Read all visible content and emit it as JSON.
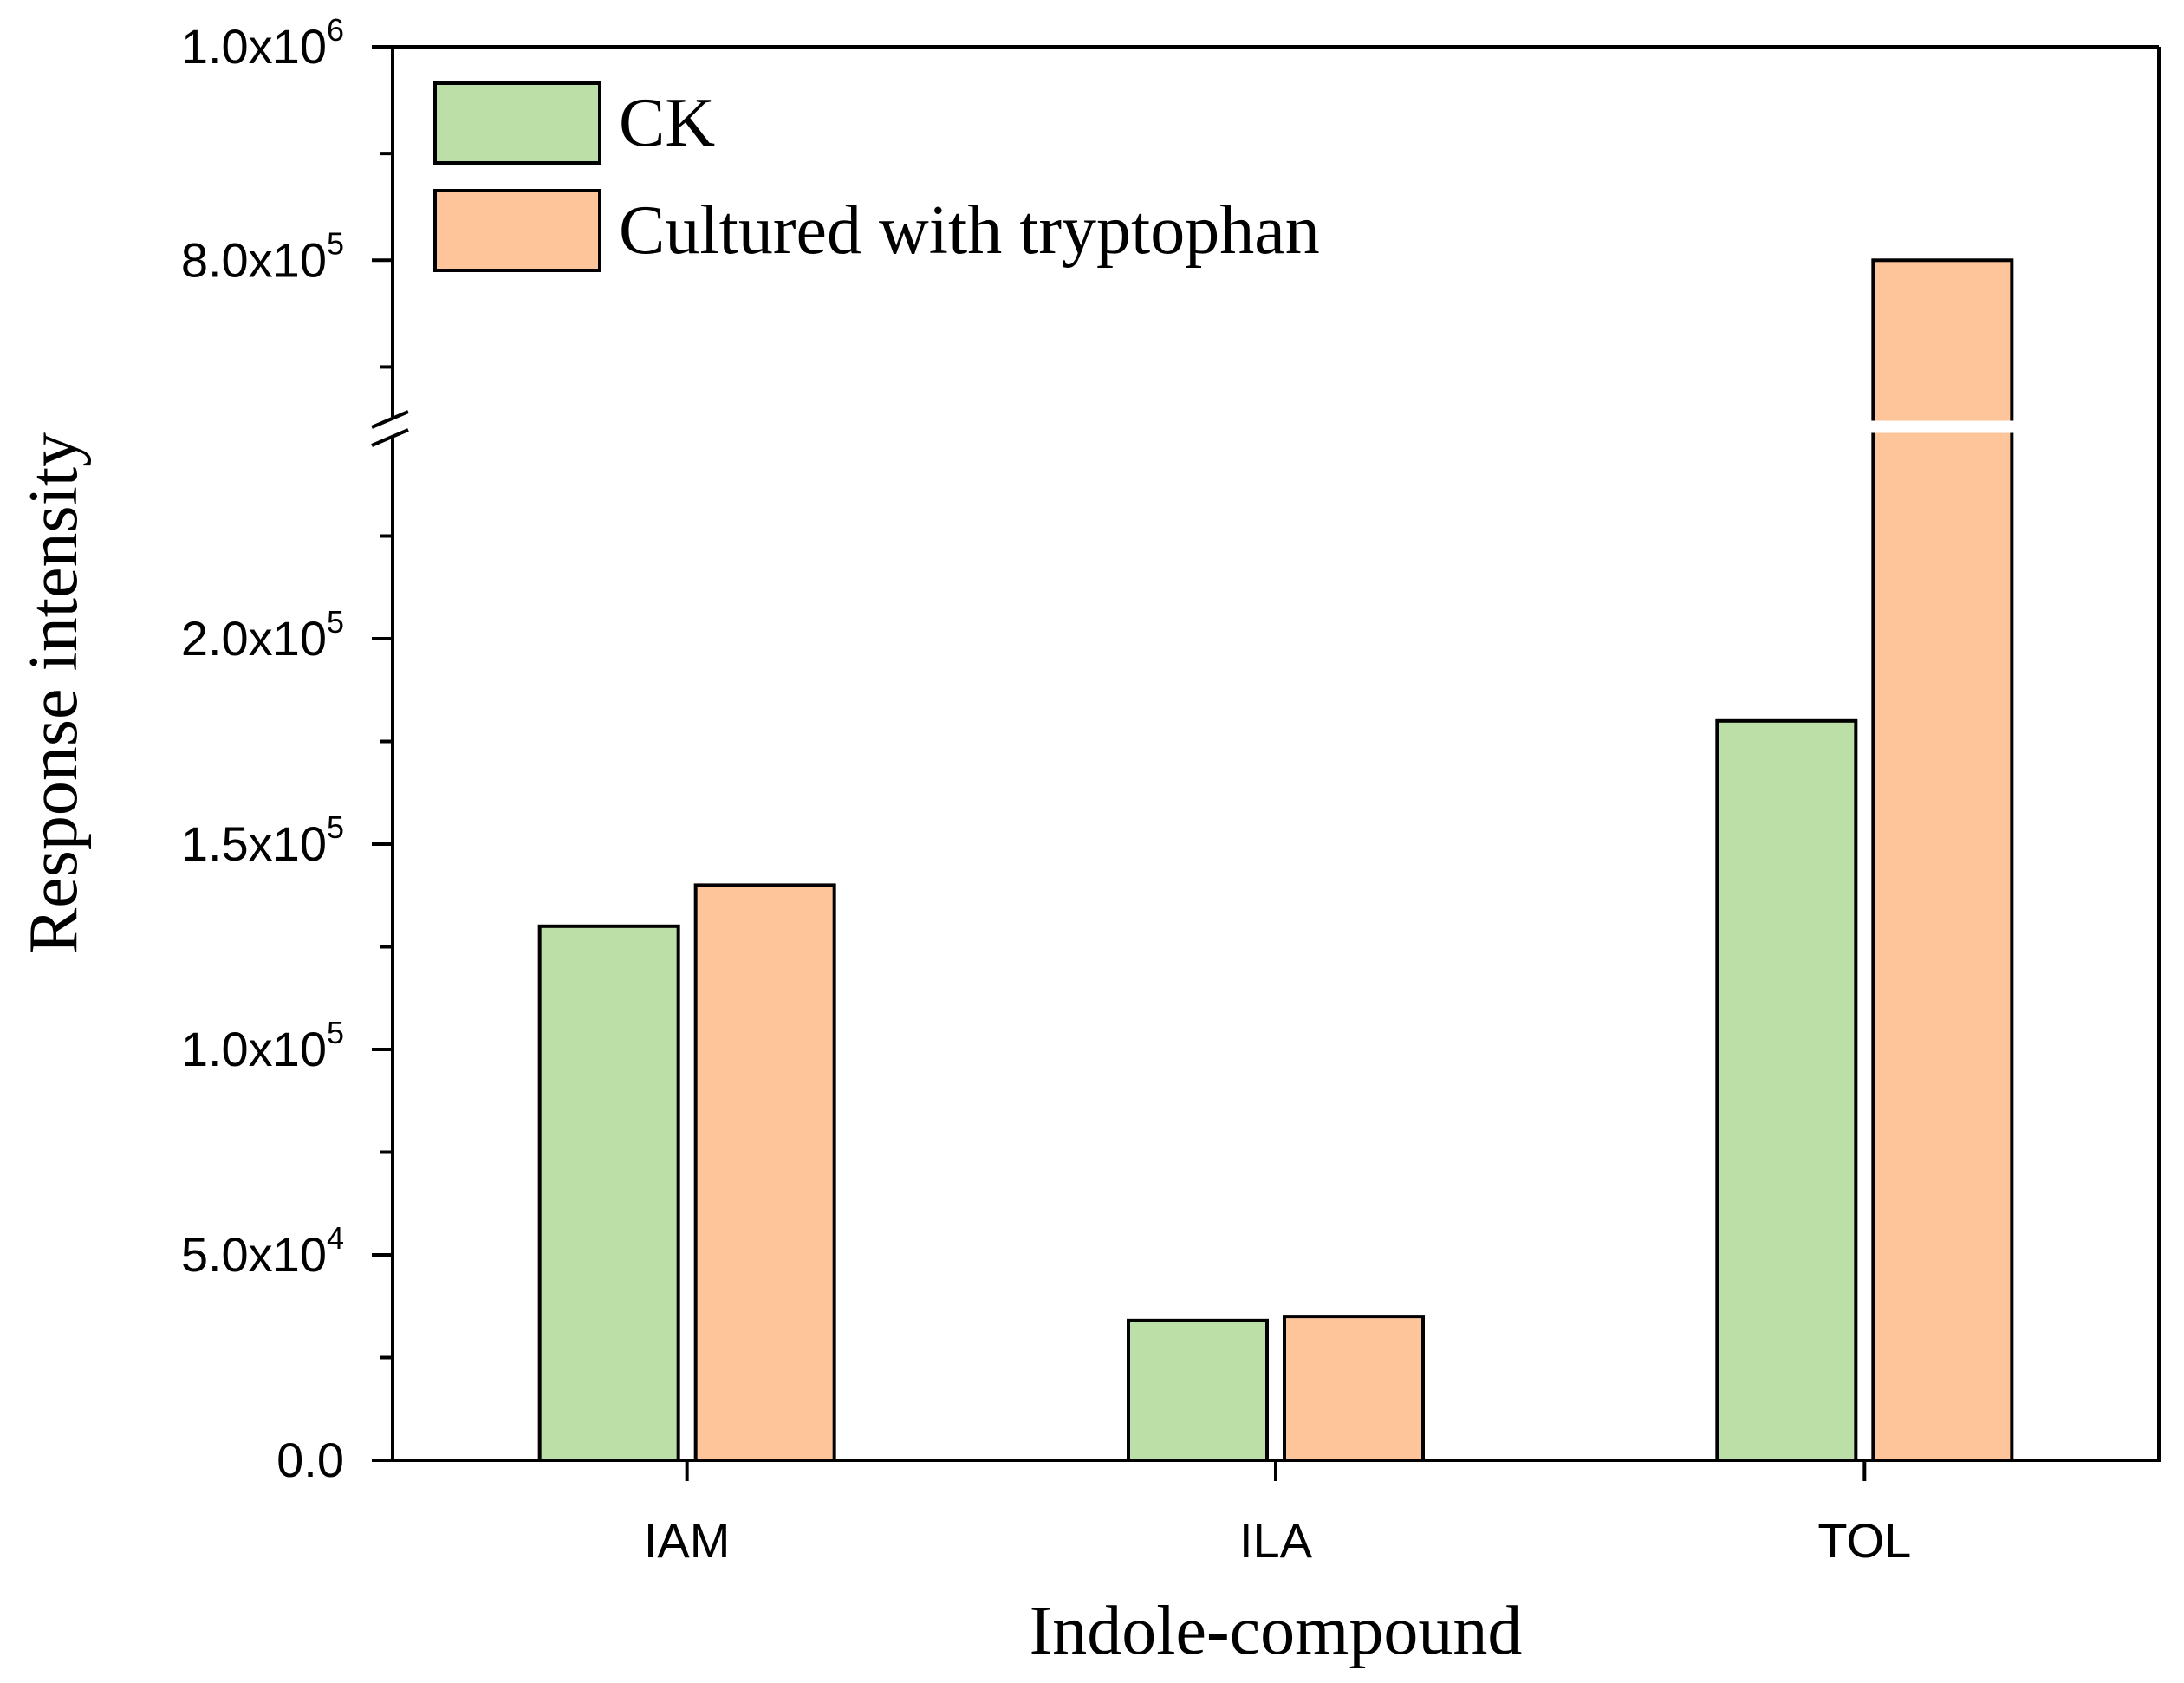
{
  "chart_data": {
    "type": "bar",
    "categories": [
      "IAM",
      "ILA",
      "TOL"
    ],
    "series": [
      {
        "name": "CK",
        "values": [
          130000,
          34000,
          180000
        ],
        "color": "#bcdfa8"
      },
      {
        "name": "Cultured with tryptophan",
        "values": [
          140000,
          35000,
          800000
        ],
        "color": "#fec59a"
      }
    ],
    "xlabel": "Indole-compound",
    "ylabel": "Response intensity",
    "y_lower_range": [
      0,
      250000
    ],
    "y_upper_range": [
      650000,
      1000000
    ],
    "axis_break": true,
    "legend": "top-left",
    "grid": false,
    "y_ticks_lower": [
      {
        "value": 0,
        "mantissa": "0.0",
        "exp": ""
      },
      {
        "value": 50000,
        "mantissa": "5.0x10",
        "exp": "4"
      },
      {
        "value": 100000,
        "mantissa": "1.0x10",
        "exp": "5"
      },
      {
        "value": 150000,
        "mantissa": "1.5x10",
        "exp": "5"
      },
      {
        "value": 200000,
        "mantissa": "2.0x10",
        "exp": "5"
      }
    ],
    "y_ticks_upper": [
      {
        "value": 800000,
        "mantissa": "8.0x10",
        "exp": "5"
      },
      {
        "value": 1000000,
        "mantissa": "1.0x10",
        "exp": "6"
      }
    ],
    "y_minor_lower": [
      25000,
      75000,
      125000,
      175000,
      225000
    ],
    "y_minor_upper": [
      700000,
      900000
    ]
  }
}
